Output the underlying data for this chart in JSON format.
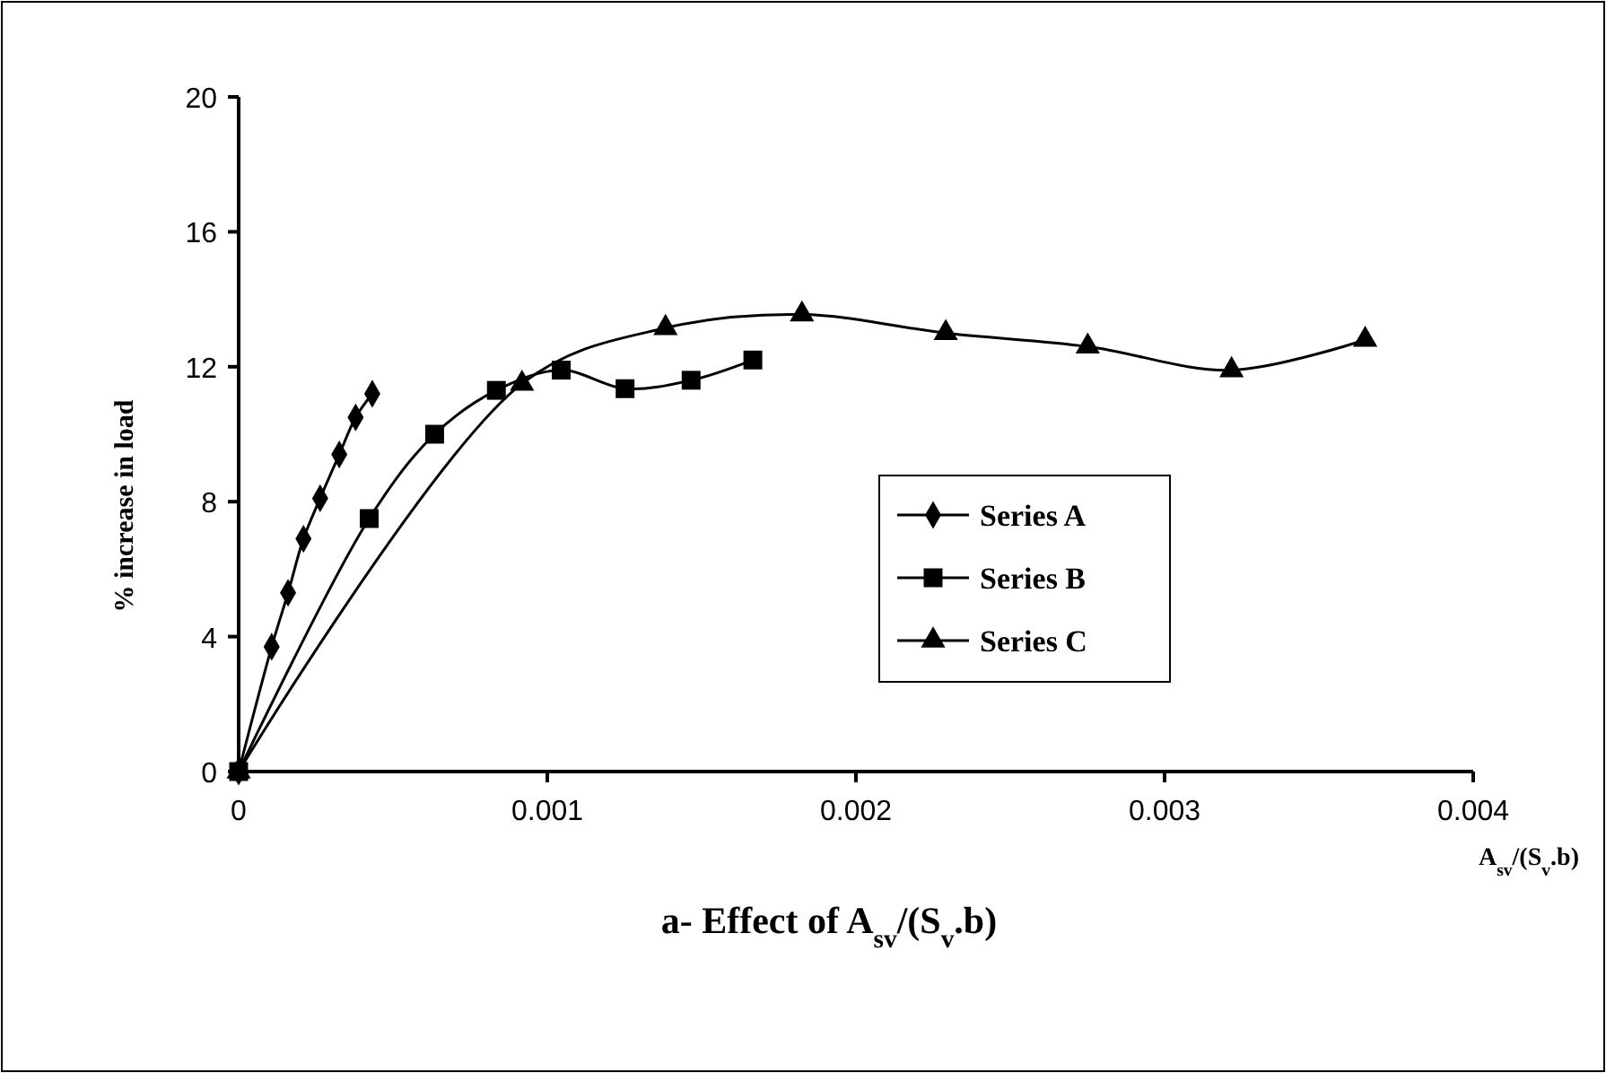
{
  "chart_data": {
    "type": "line",
    "title": "a- Effect of A$_{sv}$/(S$_{v}$.b)",
    "xlabel": "A$_{sv}$/(S$_{v}$.b)",
    "ylabel": "% increase in load",
    "xlim": [
      0,
      0.004
    ],
    "xticks": [
      0,
      0.001,
      0.002,
      0.003,
      0.004
    ],
    "ylim": [
      0,
      20
    ],
    "yticks": [
      0,
      4,
      8,
      12,
      16,
      20
    ],
    "grid": false,
    "legend": "right",
    "series": [
      {
        "name": "Series A",
        "color": "#000000",
        "marker": "diamond",
        "x": [
          0,
          0.000107,
          0.00016,
          0.00021,
          0.000264,
          0.000326,
          0.000379,
          0.000433
        ],
        "values": [
          0,
          3.7,
          5.3,
          6.9,
          8.1,
          9.4,
          10.5,
          11.2
        ]
      },
      {
        "name": "Series B",
        "color": "#000000",
        "marker": "square",
        "x": [
          0,
          0.000423,
          0.000635,
          0.000835,
          0.001045,
          0.001252,
          0.001466,
          0.001666
        ],
        "values": [
          0,
          7.5,
          10,
          11.3,
          11.9,
          11.35,
          11.6,
          12.2
        ]
      },
      {
        "name": "Series C",
        "color": "#000000",
        "marker": "triangle",
        "x": [
          0,
          0.000918,
          0.001383,
          0.001825,
          0.002291,
          0.002751,
          0.003217,
          0.00365
        ],
        "values": [
          0,
          11.5,
          13.15,
          13.55,
          13,
          12.6,
          11.9,
          12.8
        ]
      }
    ]
  }
}
